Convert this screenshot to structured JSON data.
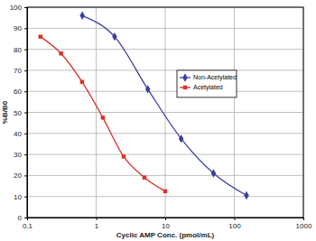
{
  "chart_data": {
    "type": "line",
    "x_label": "Cyclic AMP Conc. (pmol/mL)",
    "y_label": "%B/B0",
    "log": "x",
    "grid": true,
    "legend": "right",
    "xlim": [
      0.1,
      1000
    ],
    "xticks": [
      0.1,
      1,
      10,
      100,
      1000
    ],
    "ylim": [
      0,
      100
    ],
    "yticks": [
      0,
      10,
      20,
      30,
      40,
      50,
      60,
      70,
      80,
      90,
      100
    ],
    "series": [
      {
        "name": "Non-Acetylated",
        "color": "#3b3fa0",
        "marker": "diamond",
        "x": [
          0.63,
          1.85,
          5.6,
          17,
          50,
          150
        ],
        "values": [
          96,
          86,
          61,
          37.5,
          21,
          10.5
        ]
      },
      {
        "name": "Acetylated",
        "color": "#d9322a",
        "marker": "square",
        "x": [
          0.156,
          0.31,
          0.625,
          1.25,
          2.5,
          5,
          10
        ],
        "values": [
          86,
          78,
          64.5,
          47.5,
          29,
          19,
          12.5
        ]
      }
    ]
  }
}
